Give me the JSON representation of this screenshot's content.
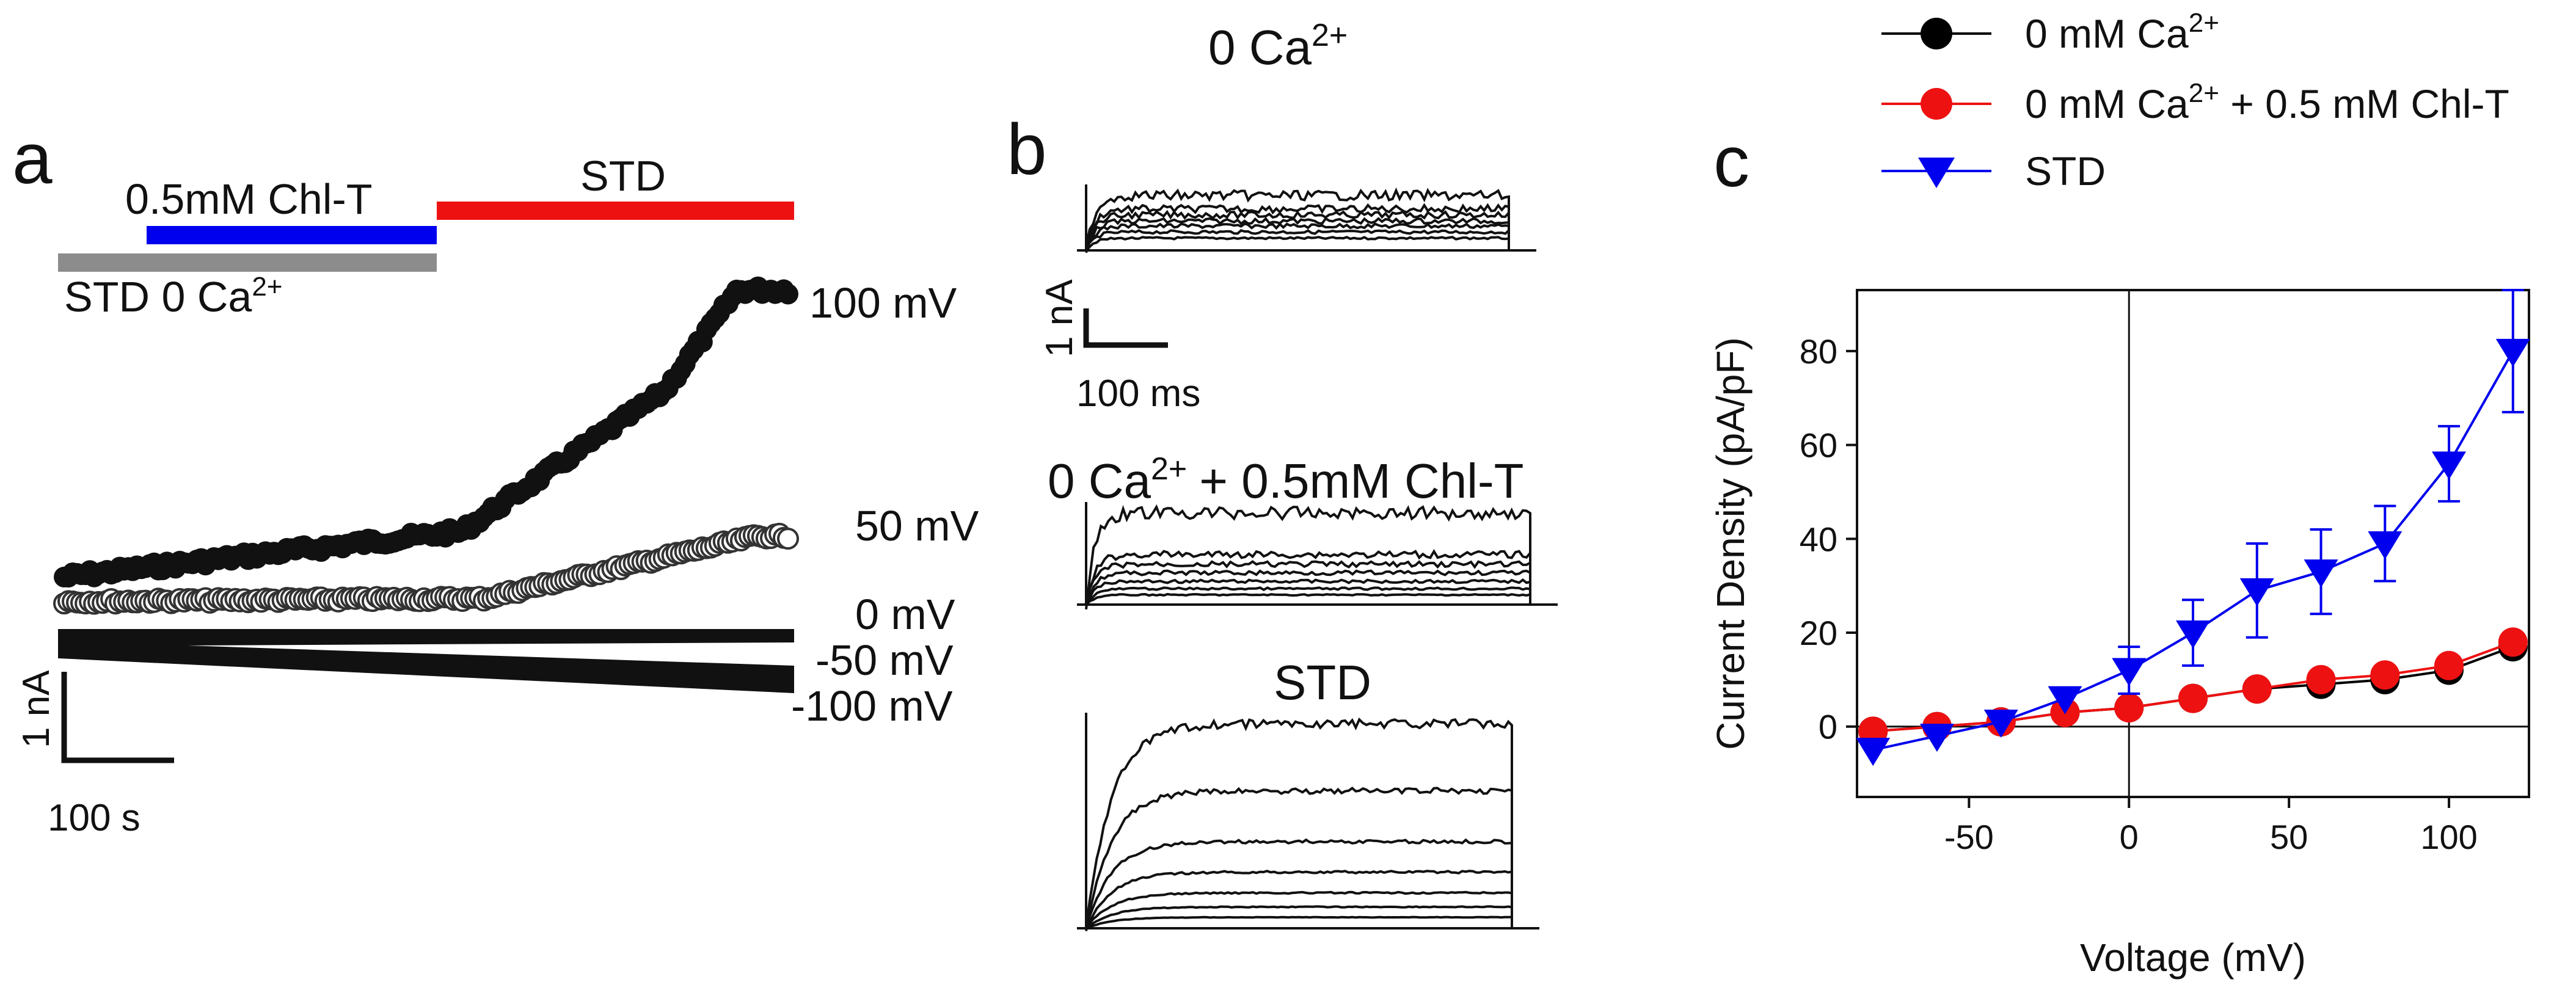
{
  "panel_a": {
    "label": "a",
    "bar_std0ca_text": "STD 0 Ca",
    "bar_std0ca_sup": "2+",
    "bar_chlt_text": "0.5mM Chl-T",
    "bar_std_text": "STD",
    "voltage_labels": [
      "100 mV",
      "50 mV",
      "0 mV",
      "-50 mV",
      "-100 mV"
    ],
    "scale_y": "1 nA",
    "scale_x": "100 s",
    "colors": {
      "std0ca_bar": "#8c8c8c",
      "chlt_bar": "#0000ee",
      "std_bar": "#ee1111"
    }
  },
  "panel_b": {
    "label": "b",
    "title1_pre": "0 Ca",
    "title1_sup": "2+",
    "title2_pre": "0 Ca",
    "title2_sup": "2+",
    "title2_post": "+ 0.5mM Chl-T",
    "title3": "STD",
    "scale_y": "1 nA",
    "scale_x": "100 ms"
  },
  "panel_c": {
    "label": "c",
    "legend": [
      {
        "pre": "0 mM Ca",
        "sup": "2+",
        "post": ""
      },
      {
        "pre": "0 mM Ca",
        "sup": "2+",
        "post": " + 0.5 mM Chl-T"
      },
      {
        "pre": "STD",
        "sup": "",
        "post": ""
      }
    ]
  },
  "chart_data": {
    "type": "line",
    "xlabel": "Voltage (mV)",
    "ylabel": "Current Density  (pA/pF)",
    "xlim": [
      -85,
      125
    ],
    "ylim": [
      -15,
      93
    ],
    "xticks": [
      -50,
      0,
      50,
      100
    ],
    "yticks": [
      0,
      20,
      40,
      60,
      80
    ],
    "x": [
      -80,
      -60,
      -40,
      -20,
      0,
      20,
      40,
      60,
      80,
      100,
      120
    ],
    "series": [
      {
        "name": "0 mM Ca2+",
        "marker": "circle",
        "color": "#000000",
        "values": [
          -1,
          0,
          1,
          3,
          4,
          6,
          8,
          9,
          10,
          12,
          17
        ]
      },
      {
        "name": "0 mM Ca2+ + 0.5 mM Chl-T",
        "marker": "circle",
        "color": "#ee1111",
        "values": [
          -1,
          0,
          1,
          3,
          4,
          6,
          8,
          10,
          11,
          13,
          18
        ]
      },
      {
        "name": "STD",
        "marker": "triangle-down",
        "color": "#0000ee",
        "values": [
          -5,
          -2,
          1,
          6,
          12,
          20,
          29,
          33,
          39,
          56,
          80
        ],
        "errors": [
          0,
          0,
          0,
          0,
          5,
          7,
          10,
          9,
          8,
          8,
          13
        ]
      }
    ],
    "reference_lines": {
      "x": 0,
      "y": 0
    },
    "legend_position": "top"
  }
}
